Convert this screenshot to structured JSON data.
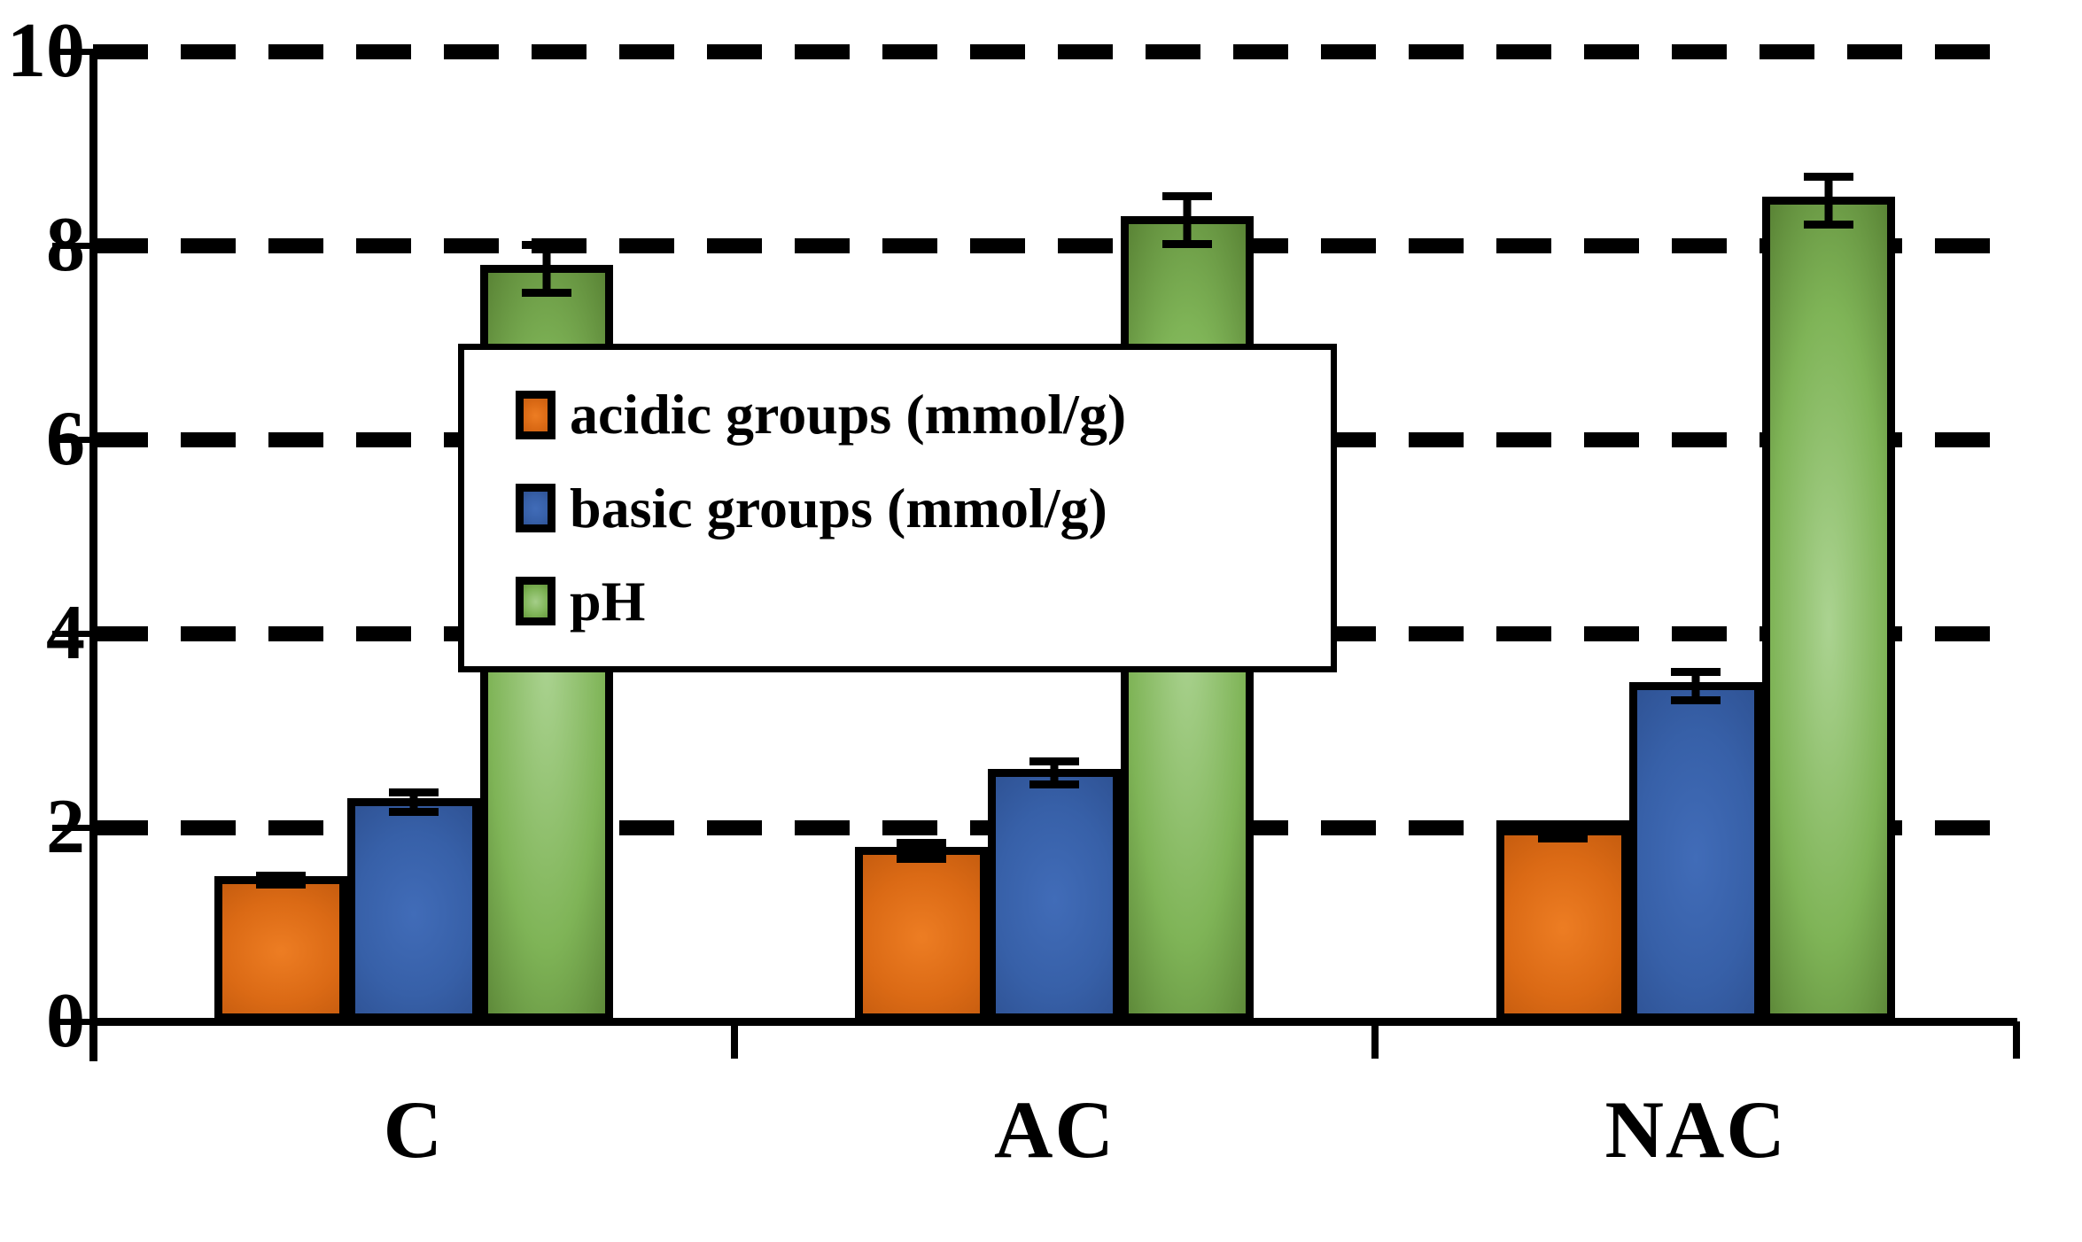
{
  "chart_data": {
    "type": "bar",
    "title": "",
    "xlabel": "",
    "ylabel": "",
    "categories": [
      "C",
      "AC",
      "NAC"
    ],
    "yticks": [
      0,
      2,
      4,
      6,
      8,
      10
    ],
    "ylim": [
      0,
      10
    ],
    "grid": "horizontal dashed bold",
    "legend_position": "center",
    "series": [
      {
        "key": "acidic",
        "name": "acidic groups (mmol/g)",
        "values": [
          1.5,
          1.8,
          2.0
        ],
        "errors": [
          0.05,
          0.08,
          0.07
        ],
        "color_stops": [
          "#ED7D23",
          "#DB6A15",
          "#BF580D"
        ],
        "swatch_stops": [
          "#ED7D23",
          "#DB6A15",
          "#C45A0E"
        ]
      },
      {
        "key": "basic",
        "name": "basic groups (mmol/g)",
        "values": [
          2.3,
          2.6,
          3.5
        ],
        "errors": [
          0.1,
          0.12,
          0.15
        ],
        "color_stops": [
          "#416CB8",
          "#3760A8",
          "#2C4E8E"
        ],
        "swatch_stops": [
          "#416CB8",
          "#3760A8",
          "#2C4E8E"
        ]
      },
      {
        "key": "ph",
        "name": "pH",
        "values": [
          7.8,
          8.3,
          8.5
        ],
        "errors": [
          0.25,
          0.25,
          0.25
        ],
        "color_stops": [
          "#ABD391",
          "#7FB457",
          "#4C7229"
        ],
        "swatch_stops": [
          "#A5CE89",
          "#7FB457",
          "#5C8D33"
        ]
      }
    ],
    "axis_color": "#000000",
    "background_color": "#FFFFFF"
  }
}
